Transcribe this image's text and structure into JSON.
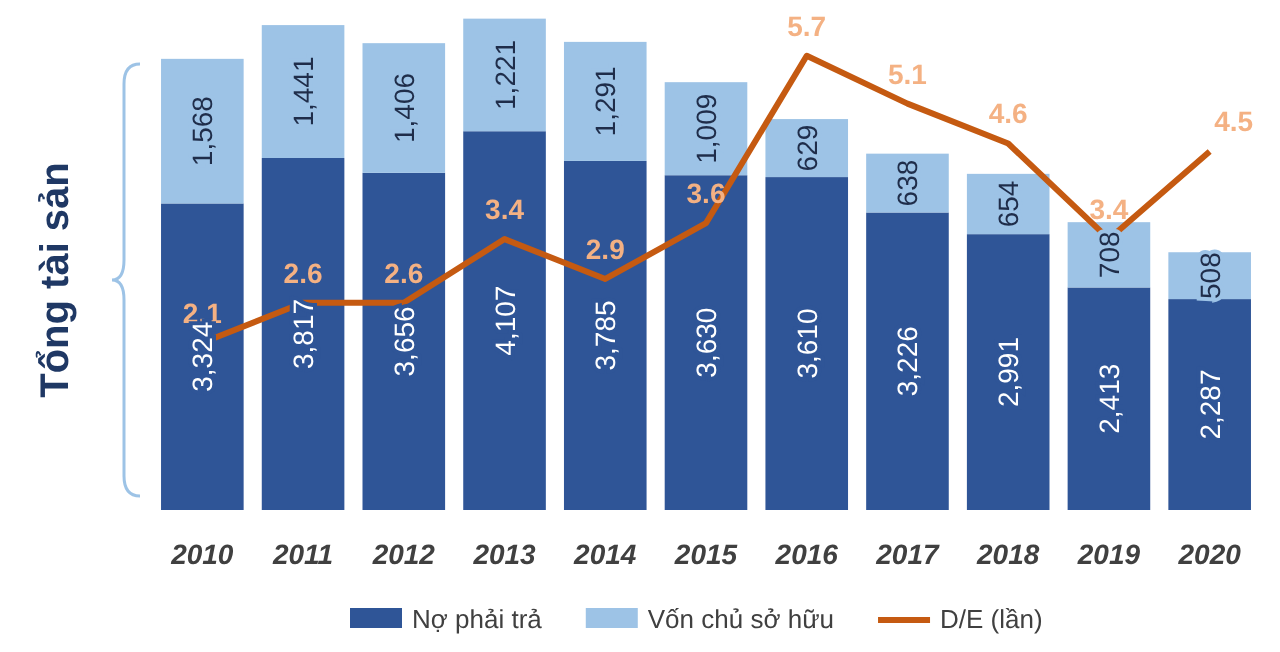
{
  "chart_data": {
    "type": "bar",
    "ylabel": "Tổng tài sản",
    "categories": [
      "2010",
      "2011",
      "2012",
      "2013",
      "2014",
      "2015",
      "2016",
      "2017",
      "2018",
      "2019",
      "2020"
    ],
    "stacked": true,
    "tick_labels": "x",
    "legend": "bottom",
    "ylim": [
      0,
      5400
    ],
    "y2lim": [
      0,
      6.25
    ],
    "series": [
      {
        "name": "Nợ phải trả",
        "color": "#2f5597",
        "values": [
          3324,
          3817,
          3656,
          4107,
          3785,
          3630,
          3610,
          3226,
          2991,
          2413,
          2287
        ],
        "value_labels": [
          "3,324",
          "3,817",
          "3,656",
          "4,107",
          "3,785",
          "3,630",
          "3,610",
          "3,226",
          "2,991",
          "2,413",
          "2,287"
        ]
      },
      {
        "name": "Vốn chủ sở hữu",
        "color": "#9dc3e6",
        "values": [
          1568,
          1441,
          1406,
          1221,
          1291,
          1009,
          629,
          638,
          654,
          708,
          508
        ],
        "value_labels": [
          "1,568",
          "1,441",
          "1,406",
          "1,221",
          "1,291",
          "1,009",
          "629",
          "638",
          "654",
          "708",
          "508"
        ]
      },
      {
        "name": "D/E (lần)",
        "type": "line",
        "axis": "y2",
        "color": "#c55a11",
        "values": [
          2.1,
          2.6,
          2.6,
          3.4,
          2.9,
          3.6,
          5.7,
          5.1,
          4.6,
          3.4,
          4.5
        ],
        "value_labels": [
          "2.1",
          "2.6",
          "2.6",
          "3.4",
          "2.9",
          "3.6",
          "5.7",
          "5.1",
          "4.6",
          "3.4",
          "4.5"
        ]
      }
    ]
  }
}
